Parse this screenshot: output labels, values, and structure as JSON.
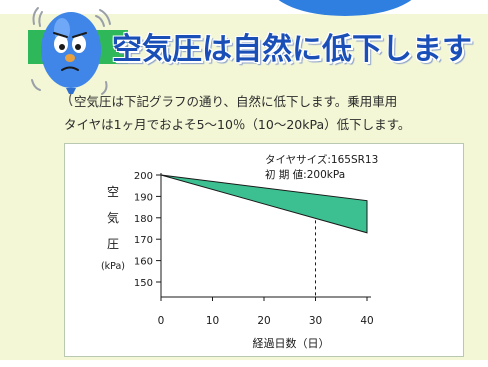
{
  "heading": "空気圧は自然に低下します",
  "description": {
    "line1": "空気圧は下記グラフの通り、自然に低下します。乗用車用",
    "line2": "タイヤは1ヶ月でおよそ5～10％（10～20kPa）低下します。"
  },
  "colors": {
    "heading": "#1a4fb8",
    "background": "#f3f7d6",
    "band_fill": "#3cc092",
    "band_stroke": "#1a1a1a",
    "mascot": "#3f86e8",
    "accent_green": "#2fb85a",
    "accent_blue": "#2f7fe0"
  },
  "mascot": {
    "icon": "balloon-mascot-icon"
  },
  "chart_data": {
    "type": "area",
    "annotation": {
      "line1": "タイヤサイズ:165SR13",
      "line2": "初 期 値:200kPa"
    },
    "ylabel": "空気圧",
    "ylabel_chars": [
      "空",
      "気",
      "圧"
    ],
    "yunit": "(kPa)",
    "xlabel": "経過日数（日）",
    "xlim": [
      0,
      40
    ],
    "ylim": [
      140,
      200
    ],
    "xticks": [
      0,
      10,
      20,
      30,
      40
    ],
    "yticks": [
      200,
      190,
      180,
      170,
      160,
      150
    ],
    "grid": false,
    "reference_line_x": 30,
    "band": {
      "x": [
        0,
        40
      ],
      "upper": [
        200,
        188
      ],
      "lower": [
        200,
        173
      ]
    }
  }
}
